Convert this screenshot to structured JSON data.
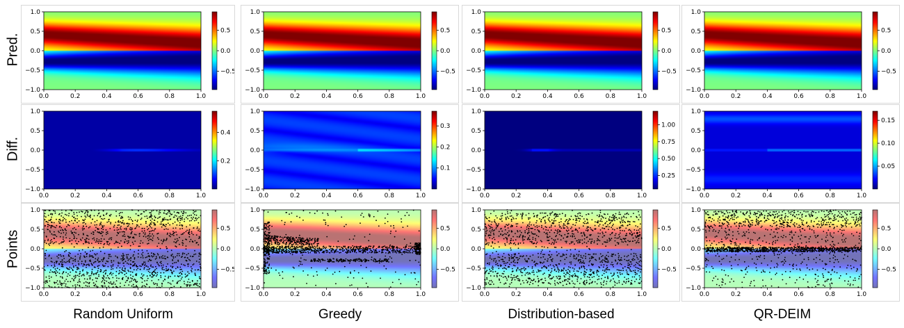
{
  "row_labels": [
    "Pred.",
    "Diff.",
    "Points"
  ],
  "column_labels": [
    "Random Uniform",
    "Greedy",
    "Distribution-based",
    "QR-DEIM"
  ],
  "axis_ticks": {
    "x": [
      "0.0",
      "0.2",
      "0.4",
      "0.6",
      "0.8",
      "1.0"
    ],
    "y": [
      "1.0",
      "0.5",
      "0.0",
      "−0.5",
      "−1.0"
    ]
  },
  "chart_data": {
    "type": "heatmap",
    "xlim": [
      0,
      1
    ],
    "ylim": [
      -1,
      1
    ],
    "colormap": "jet",
    "panels": [
      {
        "row": "Pred.",
        "column": "Random Uniform",
        "colorbar_ticks": [
          {
            "v": 0.5,
            "label": "0.5"
          },
          {
            "v": 0.0,
            "label": "0.0"
          },
          {
            "v": -0.5,
            "label": "−0.5"
          }
        ],
        "colorbar_range": [
          -0.95,
          0.95
        ]
      },
      {
        "row": "Pred.",
        "column": "Greedy",
        "colorbar_ticks": [
          {
            "v": 0.5,
            "label": "0.5"
          },
          {
            "v": 0.0,
            "label": "0.0"
          },
          {
            "v": -0.5,
            "label": "−0.5"
          }
        ],
        "colorbar_range": [
          -0.95,
          0.95
        ]
      },
      {
        "row": "Pred.",
        "column": "Distribution-based",
        "colorbar_ticks": [
          {
            "v": 0.5,
            "label": "0.5"
          },
          {
            "v": 0.0,
            "label": "0.0"
          },
          {
            "v": -0.5,
            "label": "−0.5"
          }
        ],
        "colorbar_range": [
          -0.95,
          0.95
        ]
      },
      {
        "row": "Pred.",
        "column": "QR-DEIM",
        "colorbar_ticks": [
          {
            "v": 0.5,
            "label": "0.5"
          },
          {
            "v": 0.0,
            "label": "0.0"
          },
          {
            "v": -0.5,
            "label": "−0.5"
          }
        ],
        "colorbar_range": [
          -0.95,
          0.95
        ]
      },
      {
        "row": "Diff.",
        "column": "Random Uniform",
        "colorbar_ticks": [
          {
            "v": 0.4,
            "label": "0.4"
          },
          {
            "v": 0.2,
            "label": "0.2"
          }
        ],
        "colorbar_range": [
          0.0,
          0.55
        ]
      },
      {
        "row": "Diff.",
        "column": "Greedy",
        "colorbar_ticks": [
          {
            "v": 0.3,
            "label": "0.3"
          },
          {
            "v": 0.2,
            "label": "0.2"
          },
          {
            "v": 0.1,
            "label": "0.1"
          }
        ],
        "colorbar_range": [
          0.0,
          0.37
        ]
      },
      {
        "row": "Diff.",
        "column": "Distribution-based",
        "colorbar_ticks": [
          {
            "v": 1.0,
            "label": "1.00"
          },
          {
            "v": 0.75,
            "label": "0.75"
          },
          {
            "v": 0.5,
            "label": "0.50"
          },
          {
            "v": 0.25,
            "label": "0.25"
          }
        ],
        "colorbar_range": [
          0.05,
          1.2
        ]
      },
      {
        "row": "Diff.",
        "column": "QR-DEIM",
        "colorbar_ticks": [
          {
            "v": 0.15,
            "label": "0.15"
          },
          {
            "v": 0.1,
            "label": "0.10"
          },
          {
            "v": 0.05,
            "label": "0.05"
          }
        ],
        "colorbar_range": [
          0.0,
          0.17
        ]
      },
      {
        "row": "Points",
        "column": "Random Uniform",
        "colorbar_ticks": [
          {
            "v": 0.5,
            "label": "0.5"
          },
          {
            "v": 0.0,
            "label": "0.0"
          },
          {
            "v": -0.5,
            "label": "−0.5"
          }
        ],
        "colorbar_range": [
          -0.95,
          0.95
        ]
      },
      {
        "row": "Points",
        "column": "Greedy",
        "colorbar_ticks": [
          {
            "v": 0.5,
            "label": "0.5"
          },
          {
            "v": 0.0,
            "label": "0.0"
          },
          {
            "v": -0.5,
            "label": "−0.5"
          }
        ],
        "colorbar_range": [
          -0.95,
          0.95
        ]
      },
      {
        "row": "Points",
        "column": "Distribution-based",
        "colorbar_ticks": [
          {
            "v": 0.5,
            "label": "0.5"
          },
          {
            "v": 0.0,
            "label": "0.0"
          },
          {
            "v": -0.5,
            "label": "−0.5"
          }
        ],
        "colorbar_range": [
          -0.95,
          0.95
        ]
      },
      {
        "row": "Points",
        "column": "QR-DEIM",
        "colorbar_ticks": [
          {
            "v": 0.5,
            "label": "0.5"
          },
          {
            "v": 0.0,
            "label": "0.0"
          },
          {
            "v": -0.5,
            "label": "−0.5"
          }
        ],
        "colorbar_range": [
          -0.95,
          0.95
        ]
      }
    ]
  }
}
